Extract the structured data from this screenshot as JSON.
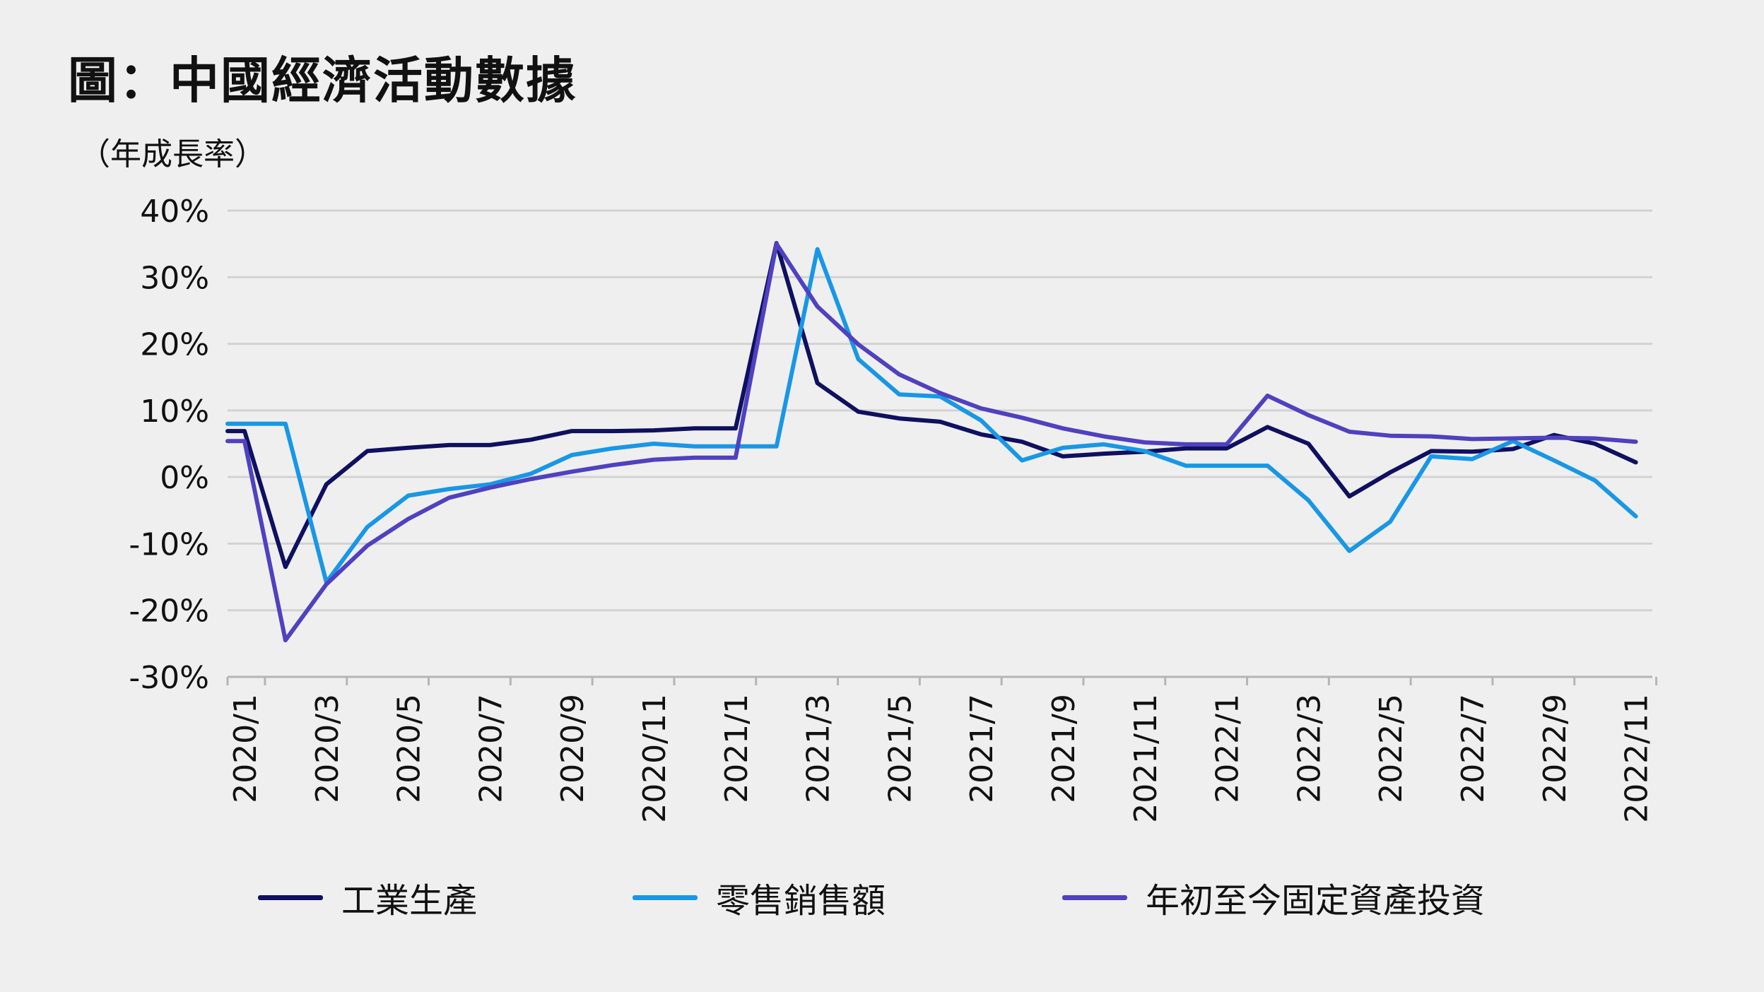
{
  "title": "圖：中國經濟活動數據",
  "unit_label": "（年成長率）",
  "colors": {
    "background": "#efefef",
    "grid": "#d2d2d2",
    "axis": "#b5b5b5",
    "text": "#111111"
  },
  "chart_data": {
    "type": "line",
    "title": "圖：中國經濟活動數據",
    "ylabel": "（年成長率）",
    "xlabel": "",
    "ylim": [
      -30,
      40
    ],
    "yticks": [
      40,
      30,
      20,
      10,
      0,
      -10,
      -20,
      -30
    ],
    "ytick_labels": [
      "40%",
      "30%",
      "20%",
      "10%",
      "0%",
      "-10%",
      "-20%",
      "-30%"
    ],
    "grid": true,
    "legend_position": "bottom",
    "x": [
      "2020/1",
      "2020/2",
      "2020/3",
      "2020/4",
      "2020/5",
      "2020/6",
      "2020/7",
      "2020/8",
      "2020/9",
      "2020/10",
      "2020/11",
      "2020/12",
      "2021/1",
      "2021/2",
      "2021/3",
      "2021/4",
      "2021/5",
      "2021/6",
      "2021/7",
      "2021/8",
      "2021/9",
      "2021/10",
      "2021/11",
      "2021/12",
      "2022/1",
      "2022/2",
      "2022/3",
      "2022/4",
      "2022/5",
      "2022/6",
      "2022/7",
      "2022/8",
      "2022/9",
      "2022/10",
      "2022/11"
    ],
    "xtick_labels": [
      "2020/1",
      "2020/3",
      "2020/5",
      "2020/7",
      "2020/9",
      "2020/11",
      "2021/1",
      "2021/3",
      "2021/5",
      "2021/7",
      "2021/9",
      "2021/11",
      "2022/1",
      "2022/3",
      "2022/5",
      "2022/7",
      "2022/9",
      "2022/11"
    ],
    "series": [
      {
        "name": "工業生產",
        "color": "#0f1060",
        "leading_value": 6.9,
        "values": [
          6.9,
          -13.5,
          -1.1,
          3.9,
          4.4,
          4.8,
          4.8,
          5.6,
          6.9,
          6.9,
          7.0,
          7.3,
          7.3,
          35.1,
          14.1,
          9.8,
          8.8,
          8.3,
          6.4,
          5.3,
          3.1,
          3.5,
          3.8,
          4.3,
          4.3,
          7.5,
          5.0,
          -2.9,
          0.7,
          3.9,
          3.8,
          4.2,
          6.3,
          5.0,
          2.2
        ]
      },
      {
        "name": "零售銷售額",
        "color": "#1897e6",
        "leading_value": 8.0,
        "values": [
          8.0,
          8.0,
          -15.8,
          -7.5,
          -2.8,
          -1.8,
          -1.1,
          0.5,
          3.3,
          4.3,
          5.0,
          4.6,
          4.6,
          4.6,
          34.2,
          17.7,
          12.4,
          12.1,
          8.5,
          2.5,
          4.4,
          4.9,
          3.9,
          1.7,
          1.7,
          1.7,
          -3.5,
          -11.1,
          -6.7,
          3.1,
          2.7,
          5.4,
          2.5,
          -0.5,
          -5.9
        ]
      },
      {
        "name": "年初至今固定資產投資",
        "color": "#4f41bf",
        "leading_value": 5.4,
        "values": [
          5.4,
          -24.5,
          -16.1,
          -10.3,
          -6.3,
          -3.1,
          -1.6,
          -0.3,
          0.8,
          1.8,
          2.6,
          2.9,
          2.9,
          35.0,
          25.6,
          19.9,
          15.4,
          12.6,
          10.3,
          8.9,
          7.3,
          6.1,
          5.2,
          4.9,
          4.9,
          12.2,
          9.3,
          6.8,
          6.2,
          6.1,
          5.7,
          5.8,
          5.9,
          5.8,
          5.3
        ]
      }
    ]
  }
}
